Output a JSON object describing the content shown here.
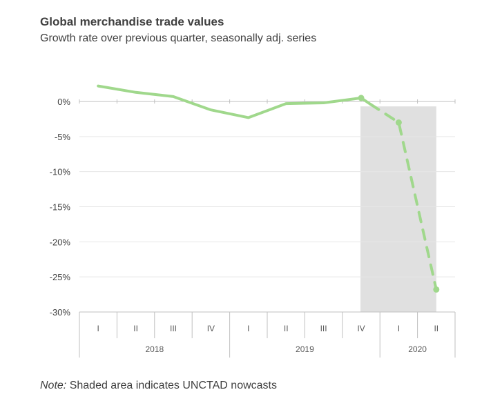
{
  "chart_data": {
    "type": "line",
    "title": "Global merchandise trade values",
    "subtitle": "Growth rate over previous quarter, seasonally adj. series",
    "note_label": "Note:",
    "note_text": " Shaded area indicates UNCTAD nowcasts",
    "y_ticks": [
      0,
      -5,
      -10,
      -15,
      -20,
      -25,
      -30
    ],
    "y_tick_labels": [
      "0%",
      "-5%",
      "-10%",
      "-15%",
      "-20%",
      "-25%",
      "-30%"
    ],
    "ylim": [
      -30,
      0
    ],
    "grid": true,
    "quarters": [
      "I",
      "II",
      "III",
      "IV",
      "I",
      "II",
      "III",
      "IV",
      "I",
      "II"
    ],
    "years": [
      {
        "label": "2018",
        "start": 0,
        "end": 3
      },
      {
        "label": "2019",
        "start": 4,
        "end": 7
      },
      {
        "label": "2020",
        "start": 8,
        "end": 9
      }
    ],
    "series": [
      {
        "style": "solid",
        "points": [
          [
            0,
            2.2
          ],
          [
            1,
            1.3
          ],
          [
            2,
            0.7
          ],
          [
            3,
            -1.2
          ],
          [
            4,
            -2.3
          ],
          [
            5,
            -0.3
          ],
          [
            6,
            -0.2
          ],
          [
            7,
            0.5
          ],
          [
            7.25,
            -0.4
          ]
        ]
      },
      {
        "style": "dashed",
        "points": [
          [
            7.25,
            -0.4
          ],
          [
            8,
            -3.0
          ],
          [
            9,
            -26.8
          ]
        ]
      }
    ],
    "markers": [
      [
        7,
        0.5
      ],
      [
        8,
        -3.0
      ],
      [
        9,
        -26.8
      ]
    ],
    "shaded_region": {
      "from": 7.5,
      "to": 9.5,
      "label": "UNCTAD nowcasts"
    },
    "colors": {
      "line": "#a0d88c",
      "shade": "#e0e0e0",
      "grid": "#e6e6e6",
      "axis": "#bfbfbf"
    }
  }
}
